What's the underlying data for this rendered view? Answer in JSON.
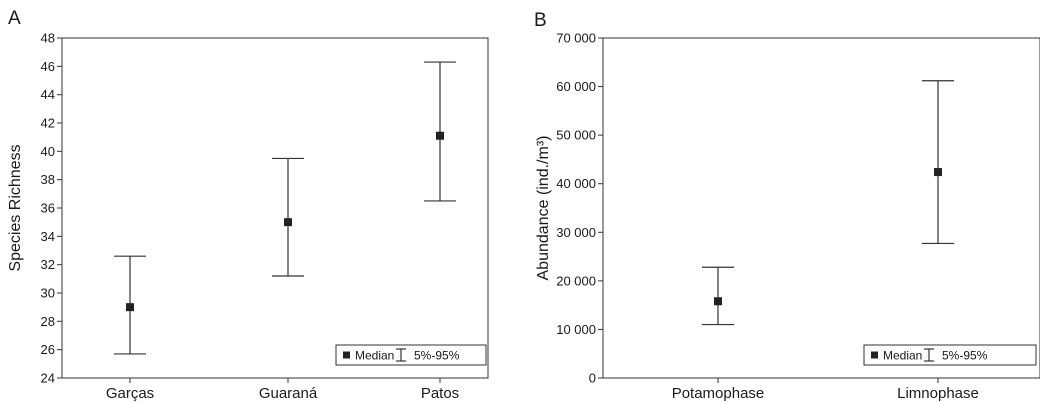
{
  "chart_data": [
    {
      "panel": "A",
      "type": "scatter",
      "ylabel": "Species Richness",
      "ylim": [
        24,
        48
      ],
      "yticks": [
        24,
        26,
        28,
        30,
        32,
        34,
        36,
        38,
        40,
        42,
        44,
        46,
        48
      ],
      "ytick_labels": [
        "24",
        "26",
        "28",
        "30",
        "32",
        "34",
        "36",
        "38",
        "40",
        "42",
        "44",
        "46",
        "48"
      ],
      "categories": [
        "Garças",
        "Guaraná",
        "Patos"
      ],
      "median": [
        29.0,
        35.0,
        41.1
      ],
      "p5": [
        25.7,
        31.2,
        36.5
      ],
      "p95": [
        32.6,
        39.5,
        46.3
      ],
      "legend": {
        "median_label": "Median",
        "range_label": "5%-95%",
        "position": "bottom-right"
      }
    },
    {
      "panel": "B",
      "type": "scatter",
      "ylabel": "Abundance (ind./m³)",
      "ylim": [
        0,
        70000
      ],
      "yticks": [
        0,
        10000,
        20000,
        30000,
        40000,
        50000,
        60000,
        70000
      ],
      "ytick_labels": [
        "0",
        "10 000",
        "20 000",
        "30 000",
        "40 000",
        "50 000",
        "60 000",
        "70 000"
      ],
      "categories": [
        "Potamophase",
        "Limnophase"
      ],
      "median": [
        15800,
        42400
      ],
      "p5": [
        11000,
        27700
      ],
      "p95": [
        22800,
        61200
      ],
      "legend": {
        "median_label": "Median",
        "range_label": "5%-95%",
        "position": "bottom-right"
      }
    }
  ]
}
